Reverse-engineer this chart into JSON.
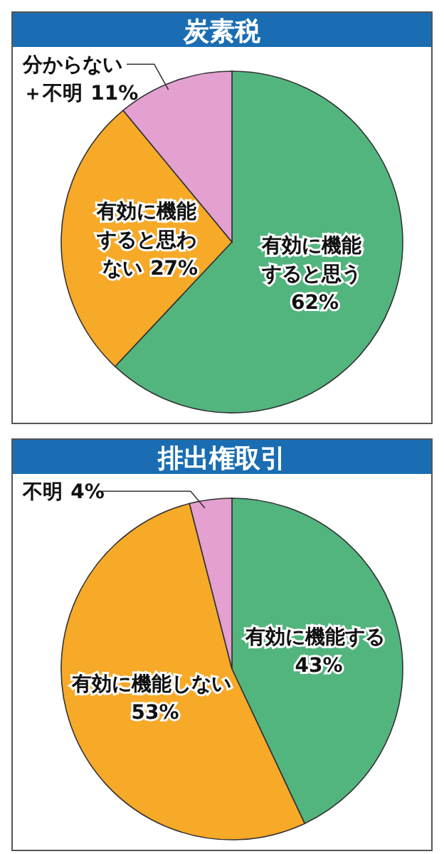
{
  "chart_data": [
    {
      "type": "pie",
      "title": "炭素税",
      "categories": [
        "有効に機能すると思う",
        "有効に機能すると思わない",
        "分からない＋不明"
      ],
      "values": [
        62,
        27,
        11
      ],
      "colors": [
        "#52b57e",
        "#f7a928",
        "#e3a0d0"
      ],
      "value_labels": [
        "62%",
        "27%",
        "11%"
      ]
    },
    {
      "type": "pie",
      "title": "排出権取引",
      "categories": [
        "有効に機能する",
        "有効に機能しない",
        "不明"
      ],
      "values": [
        43,
        53,
        4
      ],
      "colors": [
        "#52b57e",
        "#f7a928",
        "#e3a0d0"
      ],
      "value_labels": [
        "43%",
        "53%",
        "4%"
      ]
    }
  ]
}
